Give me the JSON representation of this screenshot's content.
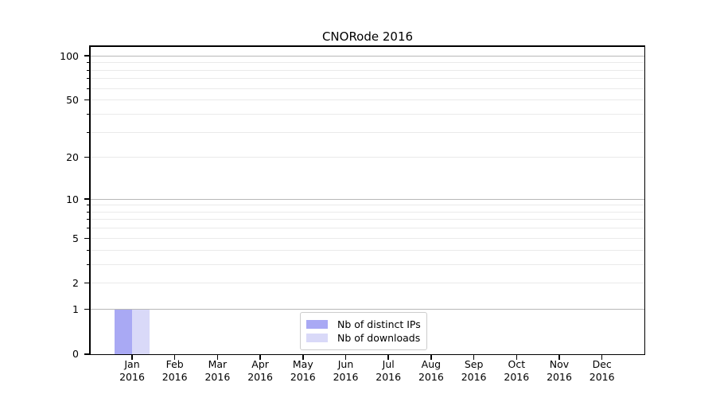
{
  "chart_data": {
    "type": "bar",
    "title": "CNORode 2016",
    "categories": [
      "Jan",
      "Feb",
      "Mar",
      "Apr",
      "May",
      "Jun",
      "Jul",
      "Aug",
      "Sep",
      "Oct",
      "Nov",
      "Dec"
    ],
    "category_year": "2016",
    "series": [
      {
        "key": "distinct-ips",
        "name": "Nb of distinct IPs",
        "color": "#a9a9f4",
        "values": [
          1,
          0,
          0,
          0,
          0,
          0,
          0,
          0,
          0,
          0,
          0,
          0
        ]
      },
      {
        "key": "downloads",
        "name": "Nb of downloads",
        "color": "#d9d9f8",
        "values": [
          1,
          0,
          0,
          0,
          0,
          0,
          0,
          0,
          0,
          0,
          0,
          0
        ]
      }
    ],
    "y_scale": "log1p",
    "ylim": [
      0,
      116
    ],
    "y_labeled_ticks": [
      0,
      1,
      2,
      5,
      10,
      20,
      50,
      100
    ],
    "y_decade_gridlines": [
      1,
      10,
      100
    ],
    "y_minor_gridlines": [
      2,
      3,
      4,
      5,
      6,
      7,
      8,
      9,
      20,
      30,
      40,
      50,
      60,
      70,
      80,
      90
    ],
    "y_minor_axis_ticks": [
      3,
      4,
      6,
      7,
      8,
      9,
      30,
      40,
      60,
      70,
      80,
      90
    ],
    "grid": true,
    "legend_position": "lower center",
    "colors": {
      "axis": "#000000",
      "grid_decade": "#b8b8b8",
      "grid_minor": "#eaeaea",
      "background": "#ffffff"
    }
  }
}
